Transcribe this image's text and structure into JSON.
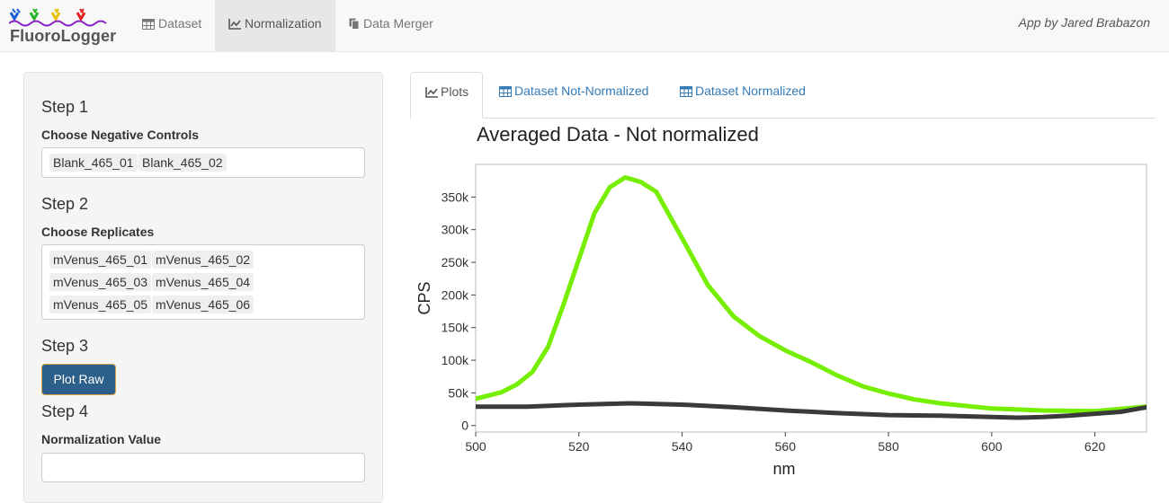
{
  "navbar": {
    "brand": "FluoroLogger",
    "items": [
      {
        "label": "Dataset",
        "icon": "table-icon"
      },
      {
        "label": "Normalization",
        "icon": "line-chart-icon",
        "active": true
      },
      {
        "label": "Data Merger",
        "icon": "copy-icon"
      }
    ],
    "credit": "App by Jared Brabazon"
  },
  "sidebar": {
    "step1": "Step 1",
    "negative_label": "Choose Negative Controls",
    "negative_selected": [
      "Blank_465_01",
      "Blank_465_02"
    ],
    "step2": "Step 2",
    "replicates_label": "Choose Replicates",
    "replicates_selected": [
      "mVenus_465_01",
      "mVenus_465_02",
      "mVenus_465_03",
      "mVenus_465_04",
      "mVenus_465_05",
      "mVenus_465_06"
    ],
    "step3": "Step 3",
    "plot_button": "Plot Raw",
    "step4": "Step 4",
    "norm_label": "Normalization Value",
    "norm_value": ""
  },
  "tabs": [
    {
      "label": "Plots",
      "icon": "line-chart-icon",
      "active": true
    },
    {
      "label": "Dataset Not-Normalized",
      "icon": "table-icon"
    },
    {
      "label": "Dataset Normalized",
      "icon": "table-icon"
    }
  ],
  "colors": {
    "accent": "#337ab7",
    "button": "#2c5f8a",
    "replicates_line": "#76ee00",
    "controls_line": "#3a3a3a"
  },
  "chart_data": {
    "type": "line",
    "title": "Averaged Data - Not normalized",
    "xlabel": "nm",
    "ylabel": "CPS",
    "xlim": [
      500,
      630
    ],
    "ylim": [
      -10000,
      400000
    ],
    "xticks": [
      500,
      520,
      540,
      560,
      580,
      600,
      620
    ],
    "yticks": [
      0,
      50000,
      100000,
      150000,
      200000,
      250000,
      300000,
      350000
    ],
    "ytick_labels": [
      "0",
      "50k",
      "100k",
      "150k",
      "200k",
      "250k",
      "300k",
      "350k"
    ],
    "grid": false,
    "series": [
      {
        "color": "#76ee00",
        "x": [
          500,
          505,
          508,
          511,
          514,
          517,
          520,
          523,
          526,
          529,
          532,
          535,
          540,
          545,
          550,
          555,
          560,
          565,
          570,
          575,
          580,
          585,
          590,
          600,
          610,
          620,
          630
        ],
        "y": [
          41000,
          51000,
          63000,
          82000,
          120000,
          185000,
          255000,
          325000,
          365000,
          380000,
          373000,
          358000,
          287000,
          215000,
          167000,
          137000,
          115000,
          97000,
          77000,
          60000,
          49000,
          40000,
          34000,
          26000,
          23000,
          22000,
          29000
        ]
      },
      {
        "color": "#3a3a3a",
        "x": [
          500,
          510,
          520,
          530,
          540,
          550,
          560,
          570,
          580,
          590,
          600,
          605,
          610,
          615,
          620,
          625,
          630
        ],
        "y": [
          29000,
          29000,
          32000,
          34000,
          32000,
          28000,
          23000,
          19000,
          16000,
          15000,
          13000,
          12000,
          13000,
          15000,
          18000,
          21000,
          28000
        ]
      }
    ]
  }
}
